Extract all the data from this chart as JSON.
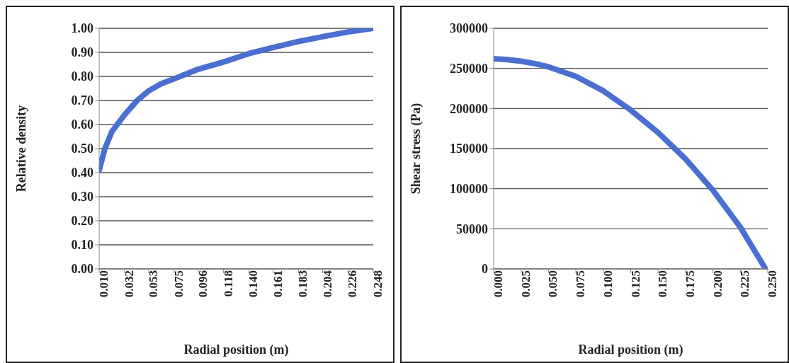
{
  "chart_data": [
    {
      "type": "line",
      "xlabel": "Radial position (m)",
      "ylabel": "Relative density",
      "x": [
        0.01,
        0.015,
        0.021,
        0.032,
        0.043,
        0.053,
        0.064,
        0.075,
        0.096,
        0.118,
        0.14,
        0.161,
        0.183,
        0.204,
        0.226,
        0.248
      ],
      "series": [
        {
          "color": "#4a6fd0",
          "values": [
            0.41,
            0.5,
            0.57,
            0.64,
            0.7,
            0.74,
            0.77,
            0.79,
            0.83,
            0.86,
            0.895,
            0.92,
            0.945,
            0.965,
            0.985,
            1.0
          ]
        }
      ],
      "xlim": [
        0.01,
        0.248
      ],
      "xticks": [
        {
          "value": 0.01,
          "label": "0.010"
        },
        {
          "value": 0.032,
          "label": "0.032"
        },
        {
          "value": 0.053,
          "label": "0.053"
        },
        {
          "value": 0.075,
          "label": "0.075"
        },
        {
          "value": 0.096,
          "label": "0.096"
        },
        {
          "value": 0.118,
          "label": "0.118"
        },
        {
          "value": 0.14,
          "label": "0.140"
        },
        {
          "value": 0.161,
          "label": "0.161"
        },
        {
          "value": 0.183,
          "label": "0.183"
        },
        {
          "value": 0.204,
          "label": "0.204"
        },
        {
          "value": 0.226,
          "label": "0.226"
        },
        {
          "value": 0.248,
          "label": "0.248"
        }
      ],
      "ylim": [
        0,
        1
      ],
      "yticks": [
        {
          "value": 0,
          "label": "0.00"
        },
        {
          "value": 0.1,
          "label": "0.10"
        },
        {
          "value": 0.2,
          "label": "0.20"
        },
        {
          "value": 0.3,
          "label": "0.30"
        },
        {
          "value": 0.4,
          "label": "0.40"
        },
        {
          "value": 0.5,
          "label": "0.50"
        },
        {
          "value": 0.6,
          "label": "0.60"
        },
        {
          "value": 0.7,
          "label": "0.70"
        },
        {
          "value": 0.8,
          "label": "0.80"
        },
        {
          "value": 0.9,
          "label": "0.90"
        },
        {
          "value": 1,
          "label": "1.00"
        }
      ],
      "grid": "y",
      "legend": false,
      "marker": "none",
      "line_style": "solid"
    },
    {
      "type": "line",
      "xlabel": "Radial position (m)",
      "ylabel": "Shear stress (Pa)",
      "x": [
        0,
        0.0125,
        0.025,
        0.0375,
        0.05,
        0.075,
        0.1,
        0.125,
        0.15,
        0.175,
        0.2,
        0.225,
        0.248
      ],
      "series": [
        {
          "color": "#4a6fd0",
          "values": [
            262000,
            261000,
            259000,
            256000,
            252000,
            240000,
            222000,
            198000,
            170000,
            137000,
            98000,
            52000,
            0
          ]
        }
      ],
      "xlim": [
        0,
        0.25
      ],
      "xticks": [
        {
          "value": 0,
          "label": "0.000"
        },
        {
          "value": 0.025,
          "label": "0.025"
        },
        {
          "value": 0.05,
          "label": "0.050"
        },
        {
          "value": 0.075,
          "label": "0.075"
        },
        {
          "value": 0.1,
          "label": "0.100"
        },
        {
          "value": 0.125,
          "label": "0.125"
        },
        {
          "value": 0.15,
          "label": "0.150"
        },
        {
          "value": 0.175,
          "label": "0.175"
        },
        {
          "value": 0.2,
          "label": "0.200"
        },
        {
          "value": 0.225,
          "label": "0.225"
        },
        {
          "value": 0.25,
          "label": "0.250"
        }
      ],
      "ylim": [
        0,
        300000
      ],
      "yticks": [
        0,
        50000,
        100000,
        150000,
        200000,
        250000,
        300000
      ],
      "grid": "y",
      "legend": false,
      "marker": "none",
      "line_style": "solid"
    }
  ]
}
